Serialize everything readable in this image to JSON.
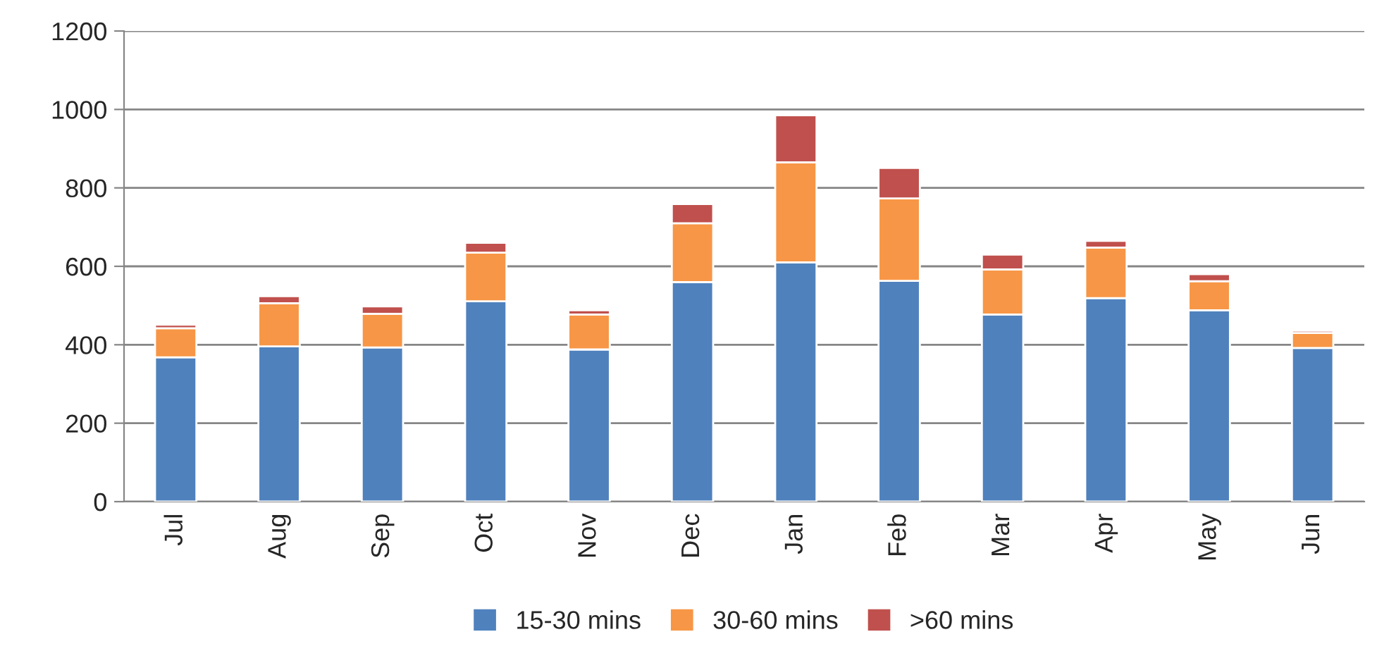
{
  "chart_data": {
    "type": "bar",
    "stacked": true,
    "categories": [
      "Jul",
      "Aug",
      "Sep",
      "Oct",
      "Nov",
      "Dec",
      "Jan",
      "Feb",
      "Mar",
      "Apr",
      "May",
      "Jun"
    ],
    "series": [
      {
        "name": "15-30 mins",
        "color": "#4f81bd",
        "values": [
          368,
          396,
          393,
          511,
          388,
          560,
          610,
          563,
          477,
          519,
          488,
          392
        ]
      },
      {
        "name": "30-60 mins",
        "color": "#f79646",
        "values": [
          74,
          110,
          86,
          124,
          89,
          150,
          255,
          210,
          115,
          129,
          74,
          38
        ]
      },
      {
        "name": ">60 mins",
        "color": "#c0504d",
        "values": [
          9,
          18,
          19,
          25,
          11,
          49,
          120,
          78,
          38,
          17,
          18,
          6
        ]
      }
    ],
    "ylim": [
      0,
      1200
    ],
    "yticks": [
      0,
      200,
      400,
      600,
      800,
      1000,
      1200
    ],
    "grid": "y",
    "legend": "bottom"
  }
}
